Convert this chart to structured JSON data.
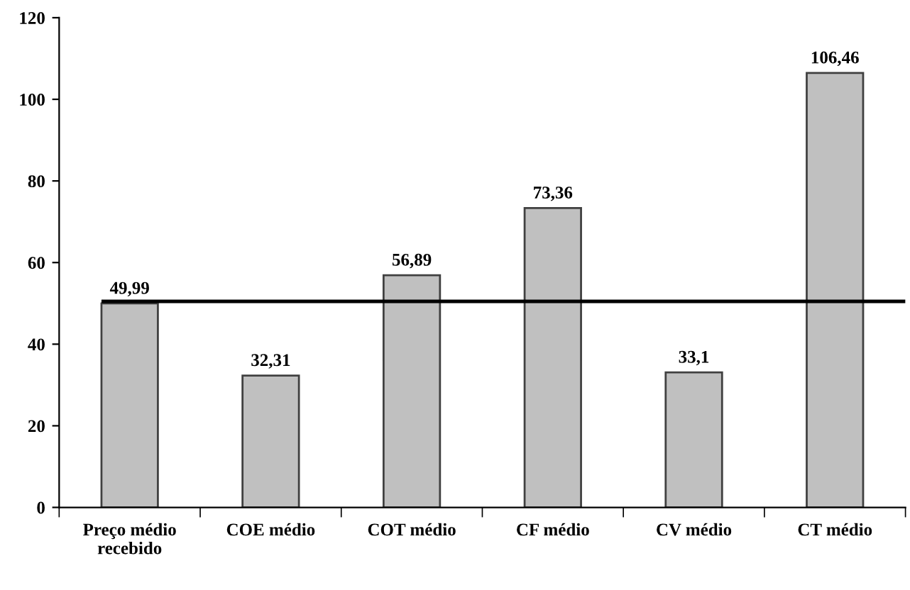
{
  "chart_data": {
    "type": "bar",
    "categories": [
      "Preço médio\nrecebido",
      "COE médio",
      "COT médio",
      "CF médio",
      "CV médio",
      "CT médio"
    ],
    "values": [
      49.99,
      32.31,
      56.89,
      73.36,
      33.1,
      106.46
    ],
    "value_labels": [
      "49,99",
      "32,31",
      "56,89",
      "73,36",
      "33,1",
      "106,46"
    ],
    "color": "#c0c0c0",
    "ylim": [
      0,
      120
    ],
    "yticks": [
      0,
      20,
      40,
      60,
      80,
      100,
      120
    ],
    "ref_lines": [
      {
        "axis": "y",
        "value": 50.5,
        "color": "#000000",
        "line_style": "solid"
      }
    ],
    "grid": false
  }
}
